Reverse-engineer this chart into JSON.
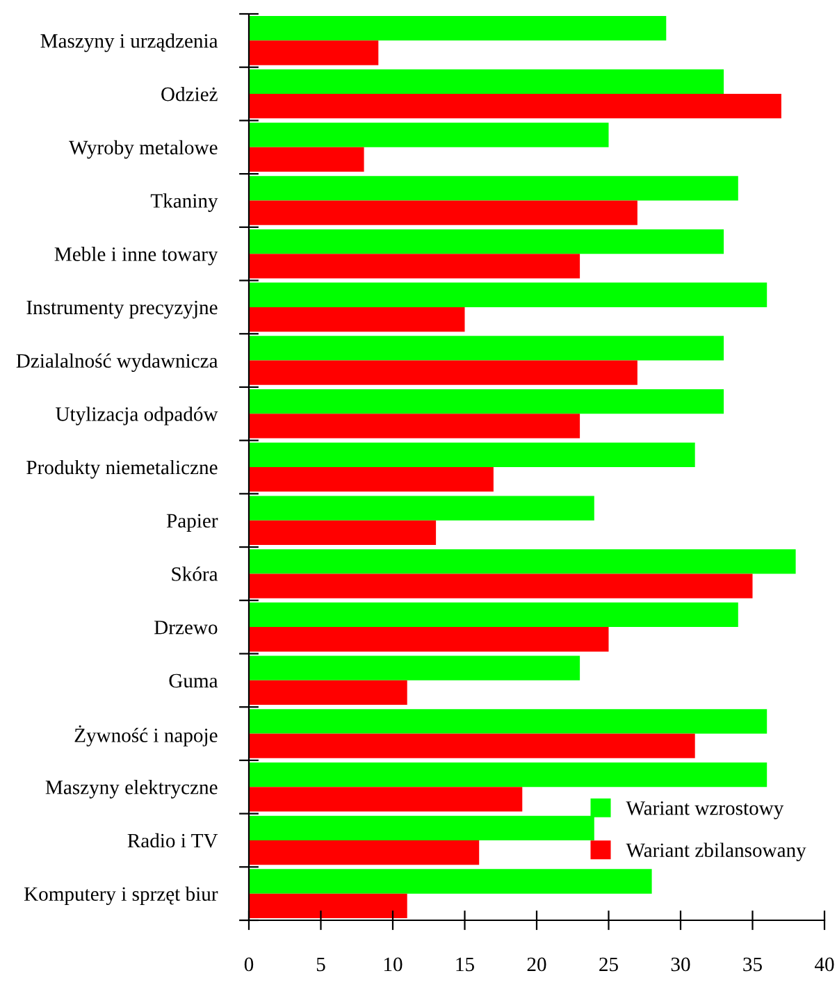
{
  "chart_data": {
    "type": "bar",
    "orientation": "horizontal",
    "categories": [
      "Maszyny i urządzenia",
      "Odzież",
      "Wyroby metalowe",
      "Tkaniny",
      "Meble i inne towary",
      "Instrumenty precyzyjne",
      "Dzialalność wydawnicza",
      "Utylizacja odpadów",
      "Produkty niemetaliczne",
      "Papier",
      "Skóra",
      "Drzewo",
      "Guma",
      "Żywność i napoje",
      "Maszyny elektryczne",
      "Radio i TV",
      "Komputery i sprzęt biur"
    ],
    "series": [
      {
        "name": "Wariant wzrostowy",
        "color": "#00ff00",
        "values": [
          29,
          33,
          25,
          34,
          33,
          36,
          33,
          33,
          31,
          24,
          38,
          34,
          23,
          36,
          36,
          24,
          28
        ]
      },
      {
        "name": "Wariant zbilansowany",
        "color": "#ff0000",
        "values": [
          9,
          37,
          8,
          27,
          23,
          15,
          27,
          23,
          17,
          13,
          35,
          25,
          11,
          31,
          19,
          16,
          11
        ]
      }
    ],
    "xlim": [
      0,
      40
    ],
    "xticks": [
      0,
      5,
      10,
      15,
      20,
      25,
      30,
      35,
      40
    ],
    "grid": false,
    "legend": "bottom right"
  }
}
